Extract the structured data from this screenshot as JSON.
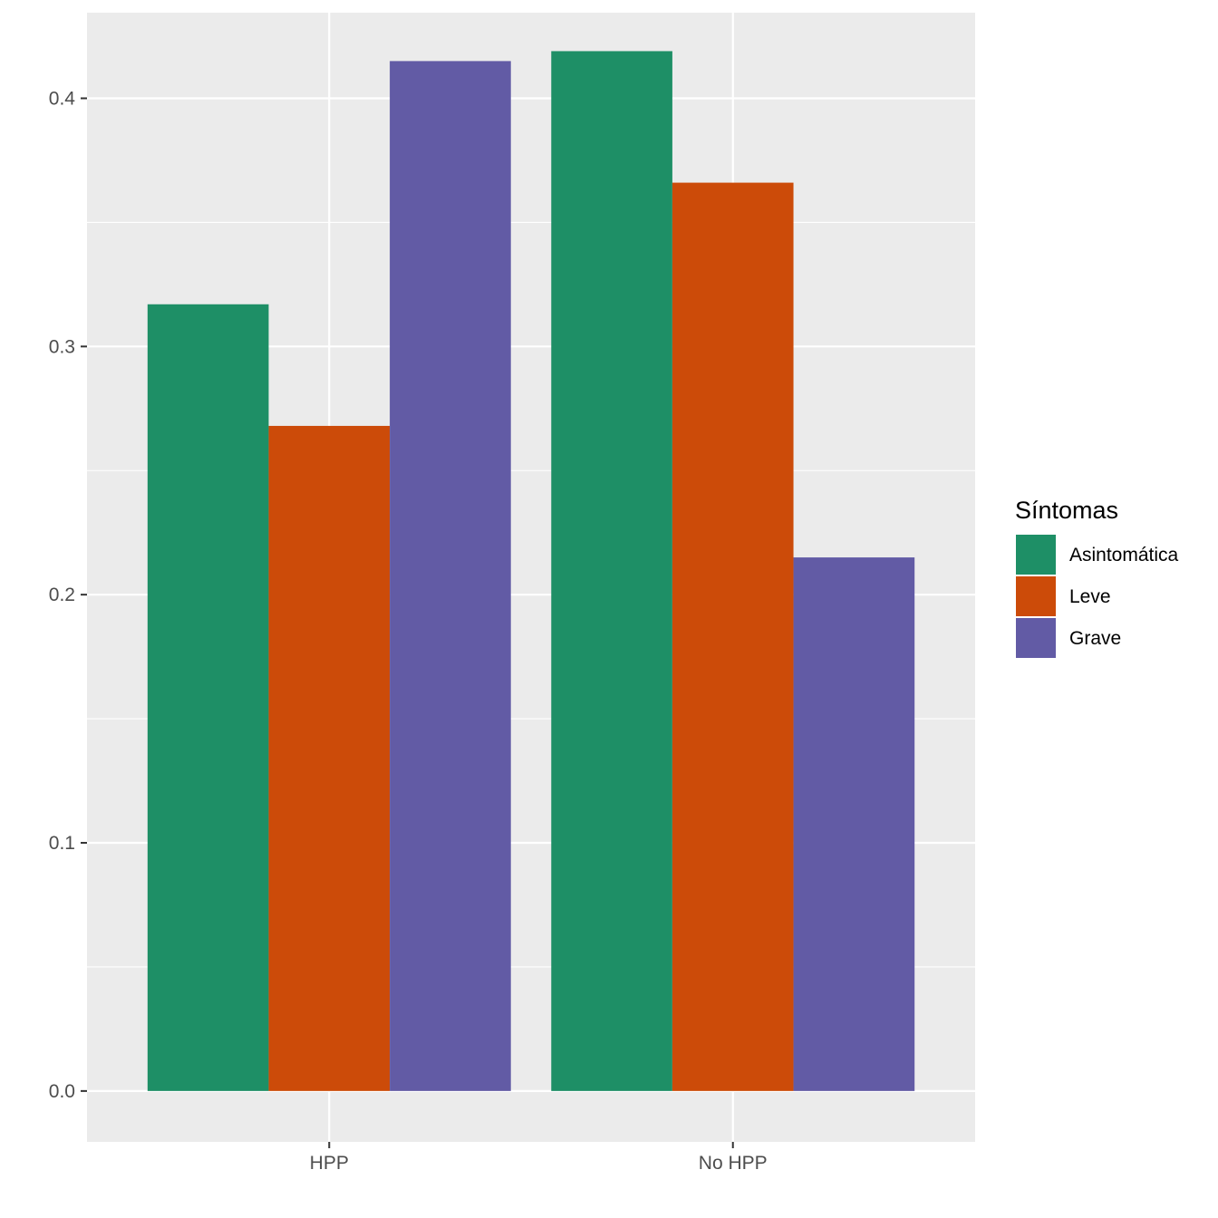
{
  "chart_data": {
    "type": "bar",
    "categories": [
      "HPP",
      "No HPP"
    ],
    "series": [
      {
        "name": "Asintomática",
        "color": "#1B9E77",
        "values": [
          0.317,
          0.419
        ]
      },
      {
        "name": "Leve",
        "color": "#D95F02",
        "values": [
          0.268,
          0.366
        ]
      },
      {
        "name": "Grave",
        "color": "#7570B3",
        "values": [
          0.415,
          0.215
        ]
      }
    ],
    "yticks": [
      0.0,
      0.1,
      0.2,
      0.3,
      0.4
    ],
    "ytick_labels": [
      "0.0",
      "0.1",
      "0.2",
      "0.3",
      "0.4"
    ],
    "ylim": [
      -0.0205,
      0.4345
    ],
    "title": "",
    "xlabel": "",
    "ylabel": "",
    "legend": {
      "title": "Síntomas",
      "position": "right"
    },
    "grid": true,
    "panel_background": "#EBEBEB",
    "bar_colors": {
      "Asintomática": "#1E8F66",
      "Leve": "#CC4B09",
      "Grave": "#625BA5"
    }
  }
}
